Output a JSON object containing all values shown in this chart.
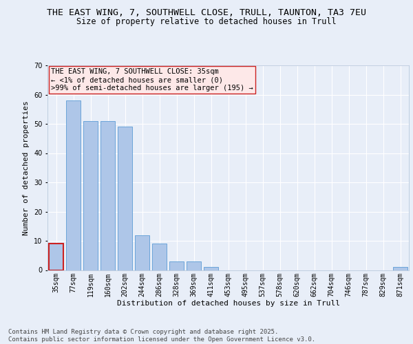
{
  "title1": "THE EAST WING, 7, SOUTHWELL CLOSE, TRULL, TAUNTON, TA3 7EU",
  "title2": "Size of property relative to detached houses in Trull",
  "xlabel": "Distribution of detached houses by size in Trull",
  "ylabel": "Number of detached properties",
  "categories": [
    "35sqm",
    "77sqm",
    "119sqm",
    "160sqm",
    "202sqm",
    "244sqm",
    "286sqm",
    "328sqm",
    "369sqm",
    "411sqm",
    "453sqm",
    "495sqm",
    "537sqm",
    "578sqm",
    "620sqm",
    "662sqm",
    "704sqm",
    "746sqm",
    "787sqm",
    "829sqm",
    "871sqm"
  ],
  "values": [
    9,
    58,
    51,
    51,
    49,
    12,
    9,
    3,
    3,
    1,
    0,
    0,
    0,
    0,
    0,
    0,
    0,
    0,
    0,
    0,
    1
  ],
  "bar_color": "#aec6e8",
  "bar_edge_color": "#5b9bd5",
  "highlight_index": 0,
  "highlight_color": "#cc2222",
  "ylim": [
    0,
    70
  ],
  "yticks": [
    0,
    10,
    20,
    30,
    40,
    50,
    60,
    70
  ],
  "annotation_box_text": "THE EAST WING, 7 SOUTHWELL CLOSE: 35sqm\n← <1% of detached houses are smaller (0)\n>99% of semi-detached houses are larger (195) →",
  "annotation_box_facecolor": "#fde8e8",
  "annotation_box_edge_color": "#cc2222",
  "footer": "Contains HM Land Registry data © Crown copyright and database right 2025.\nContains public sector information licensed under the Open Government Licence v3.0.",
  "bg_color": "#e8eef8",
  "plot_bg_color": "#e8eef8",
  "grid_color": "#ffffff",
  "title1_fontsize": 9.5,
  "title2_fontsize": 8.5,
  "axis_label_fontsize": 8,
  "tick_fontsize": 7,
  "footer_fontsize": 6.5,
  "ann_fontsize": 7.5
}
